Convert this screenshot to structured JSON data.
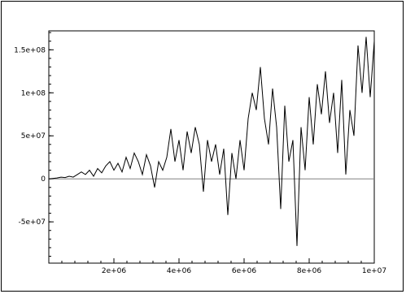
{
  "chart_data": {
    "type": "line",
    "title": "",
    "xlabel": "",
    "ylabel": "",
    "xlim": [
      0,
      10000000
    ],
    "ylim": [
      -98000000,
      172000000
    ],
    "grid": false,
    "legend": "none",
    "line_color": "#000000",
    "zero_line_color": "#808080",
    "x_ticks": [
      {
        "value": 2000000,
        "label": "2e+06"
      },
      {
        "value": 4000000,
        "label": "4e+06"
      },
      {
        "value": 6000000,
        "label": "6e+06"
      },
      {
        "value": 8000000,
        "label": "8e+06"
      },
      {
        "value": 10000000,
        "label": "1e+07"
      }
    ],
    "y_ticks": [
      {
        "value": -50000000,
        "label": "-5e+07"
      },
      {
        "value": 0,
        "label": "0"
      },
      {
        "value": 50000000,
        "label": "5e+07"
      },
      {
        "value": 100000000,
        "label": "1e+08"
      },
      {
        "value": 150000000,
        "label": "1.5e+08"
      }
    ],
    "series": [
      {
        "color": "#000000",
        "x": [
          0,
          125000,
          250000,
          375000,
          500000,
          625000,
          750000,
          875000,
          1000000,
          1125000,
          1250000,
          1375000,
          1500000,
          1625000,
          1750000,
          1875000,
          2000000,
          2125000,
          2250000,
          2375000,
          2500000,
          2625000,
          2750000,
          2875000,
          3000000,
          3125000,
          3250000,
          3375000,
          3500000,
          3625000,
          3750000,
          3875000,
          4000000,
          4125000,
          4250000,
          4375000,
          4500000,
          4625000,
          4750000,
          4875000,
          5000000,
          5125000,
          5250000,
          5375000,
          5500000,
          5625000,
          5750000,
          5875000,
          6000000,
          6125000,
          6250000,
          6375000,
          6500000,
          6625000,
          6750000,
          6875000,
          7000000,
          7125000,
          7250000,
          7375000,
          7500000,
          7625000,
          7750000,
          7875000,
          8000000,
          8125000,
          8250000,
          8375000,
          8500000,
          8625000,
          8750000,
          8875000,
          9000000,
          9125000,
          9250000,
          9375000,
          9500000,
          9625000,
          9750000,
          9875000,
          10000000
        ],
        "y": [
          0,
          500000,
          1000000,
          2000000,
          1500000,
          3000000,
          2000000,
          5000000,
          8000000,
          5000000,
          10000000,
          3000000,
          12000000,
          7000000,
          15000000,
          20000000,
          10000000,
          18000000,
          8000000,
          25000000,
          12000000,
          30000000,
          20000000,
          5000000,
          28000000,
          15000000,
          -10000000,
          20000000,
          10000000,
          25000000,
          58000000,
          20000000,
          45000000,
          10000000,
          55000000,
          30000000,
          60000000,
          40000000,
          -15000000,
          45000000,
          20000000,
          40000000,
          5000000,
          35000000,
          -42000000,
          30000000,
          0,
          45000000,
          10000000,
          70000000,
          100000000,
          80000000,
          130000000,
          70000000,
          40000000,
          105000000,
          60000000,
          -35000000,
          85000000,
          20000000,
          45000000,
          -78000000,
          60000000,
          10000000,
          95000000,
          40000000,
          110000000,
          75000000,
          125000000,
          65000000,
          100000000,
          30000000,
          115000000,
          5000000,
          80000000,
          50000000,
          155000000,
          100000000,
          165000000,
          95000000,
          160000000
        ]
      }
    ]
  }
}
